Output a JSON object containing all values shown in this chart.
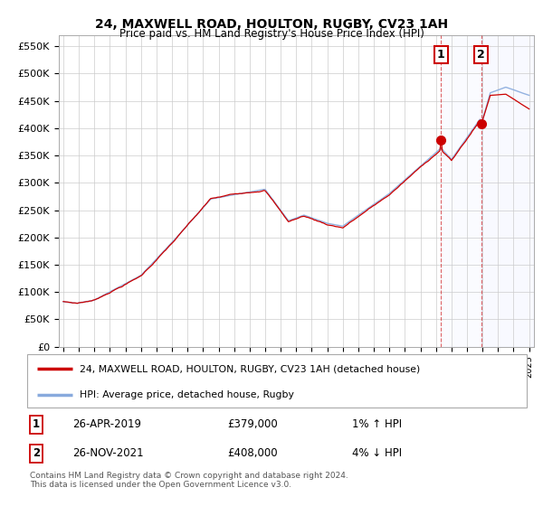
{
  "title": "24, MAXWELL ROAD, HOULTON, RUGBY, CV23 1AH",
  "subtitle": "Price paid vs. HM Land Registry's House Price Index (HPI)",
  "legend_line1": "24, MAXWELL ROAD, HOULTON, RUGBY, CV23 1AH (detached house)",
  "legend_line2": "HPI: Average price, detached house, Rugby",
  "annotation1_date": "26-APR-2019",
  "annotation1_price": "£379,000",
  "annotation1_hpi": "1% ↑ HPI",
  "annotation2_date": "26-NOV-2021",
  "annotation2_price": "£408,000",
  "annotation2_hpi": "4% ↓ HPI",
  "footer": "Contains HM Land Registry data © Crown copyright and database right 2024.\nThis data is licensed under the Open Government Licence v3.0.",
  "ylim": [
    0,
    570000
  ],
  "yticks": [
    0,
    50000,
    100000,
    150000,
    200000,
    250000,
    300000,
    350000,
    400000,
    450000,
    500000,
    550000
  ],
  "ytick_labels": [
    "£0",
    "£50K",
    "£100K",
    "£150K",
    "£200K",
    "£250K",
    "£300K",
    "£350K",
    "£400K",
    "£450K",
    "£500K",
    "£550K"
  ],
  "xlim_start": 1994.7,
  "xlim_end": 2025.3,
  "line_color_red": "#cc0000",
  "line_color_blue": "#88aadd",
  "point1_x": 2019.32,
  "point1_y": 379000,
  "point2_x": 2021.92,
  "point2_y": 408000,
  "shade_start": 2019.32,
  "background_color": "#ffffff",
  "grid_color": "#cccccc",
  "title_fontsize": 10,
  "subtitle_fontsize": 9
}
